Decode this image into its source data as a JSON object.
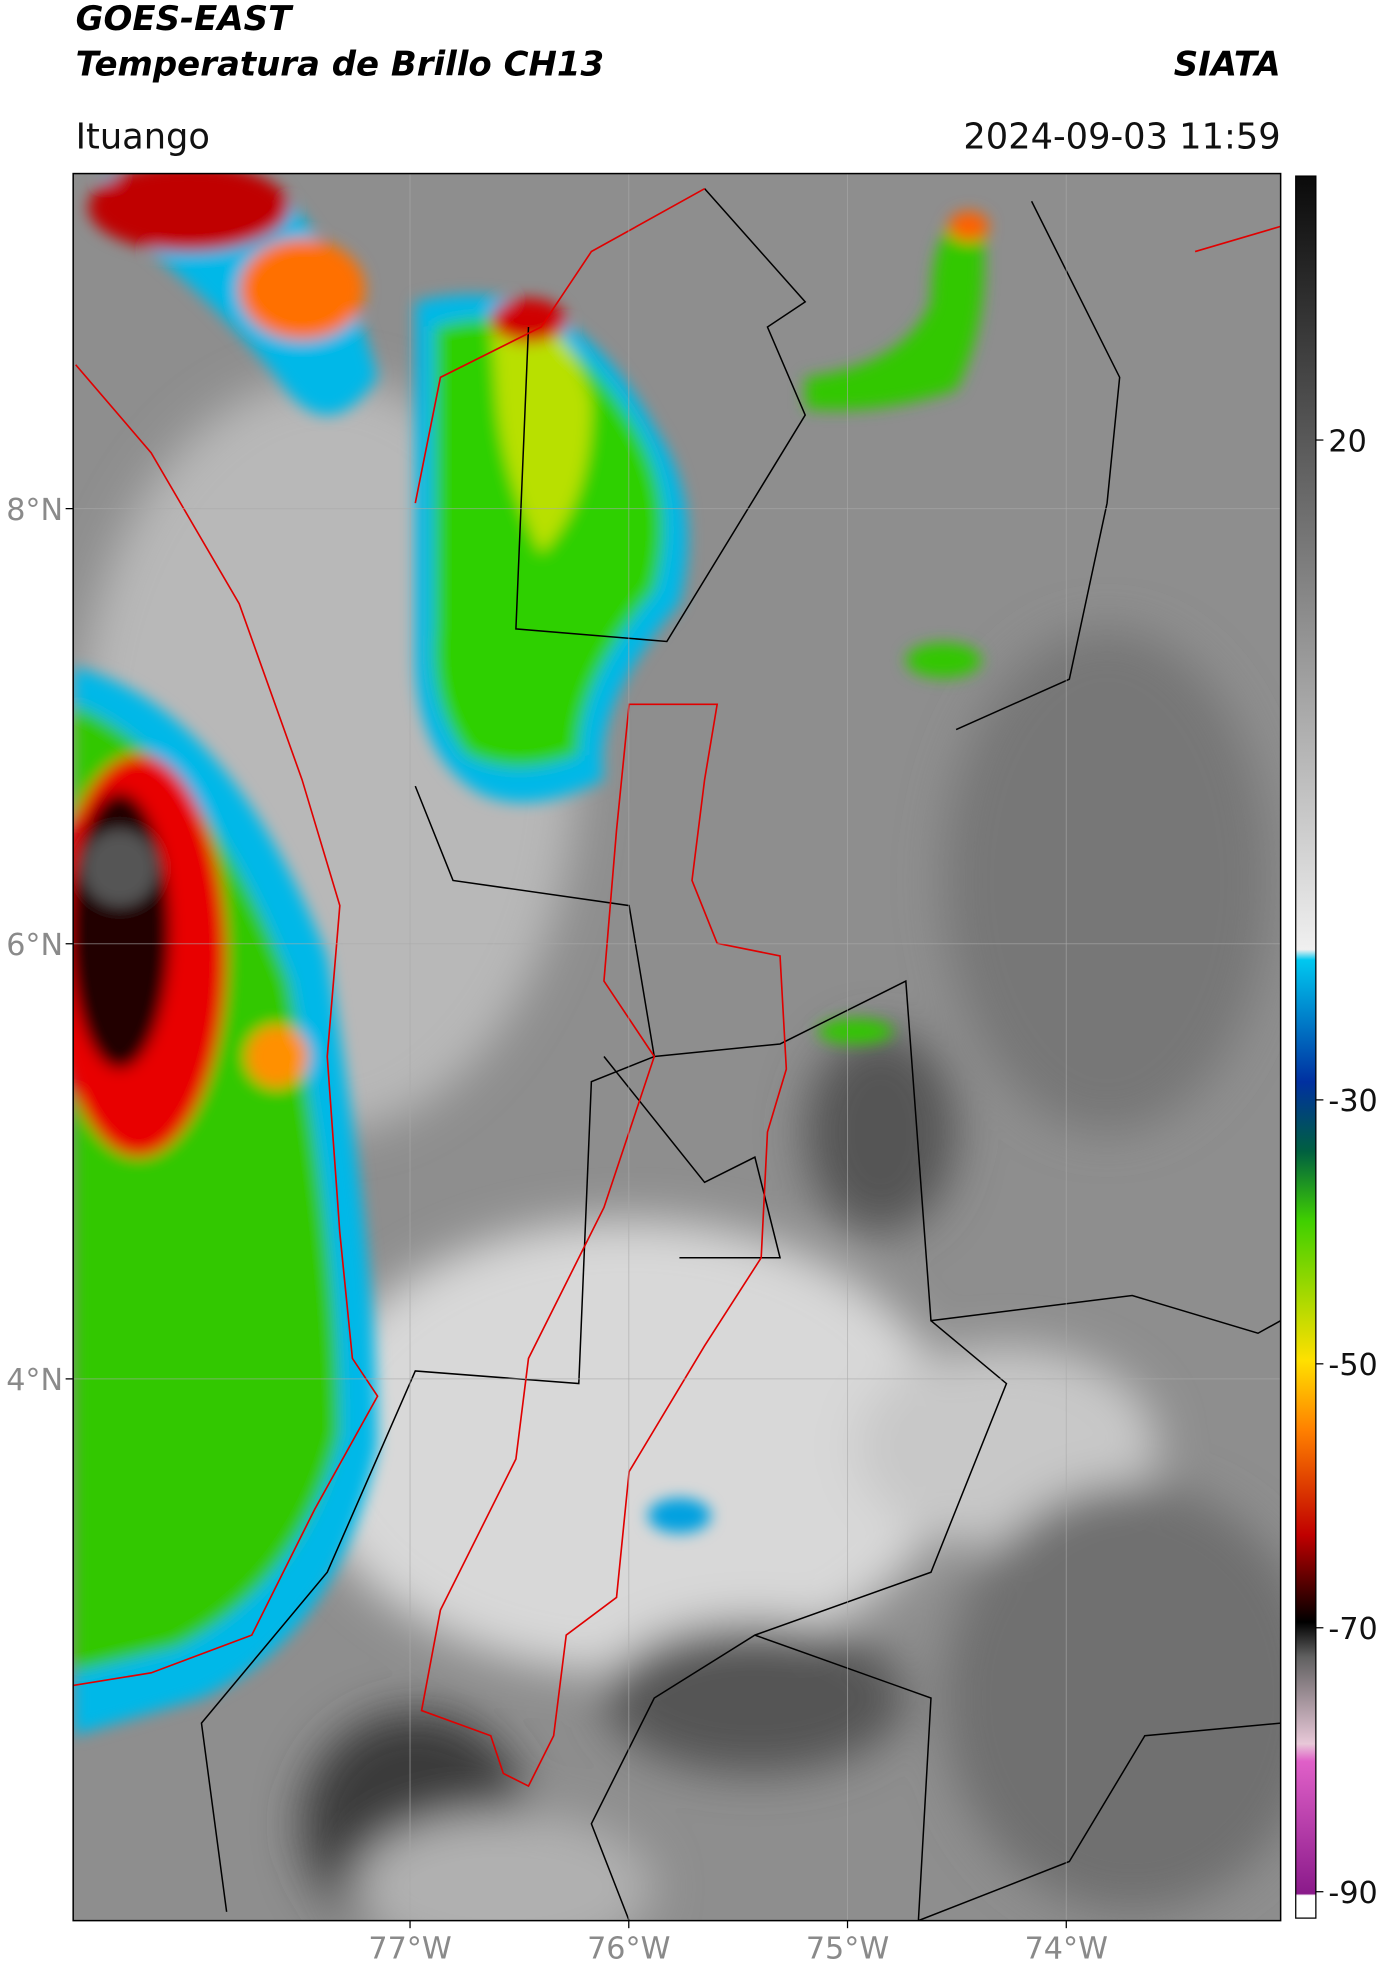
{
  "header": {
    "title": "GOES-EAST",
    "subtitle": "Temperatura de Brillo CH13",
    "source": "SIATA",
    "location": "Ituango",
    "datetime": "2024-09-03 11:59"
  },
  "map": {
    "xlim": [
      -78.54,
      -73.02
    ],
    "ylim": [
      1.51,
      9.54
    ],
    "xticks": [
      {
        "value": -77,
        "label": "77°W"
      },
      {
        "value": -76,
        "label": "76°W"
      },
      {
        "value": -75,
        "label": "75°W"
      },
      {
        "value": -74,
        "label": "74°W"
      }
    ],
    "yticks": [
      {
        "value": 4,
        "label": "4°N"
      },
      {
        "value": 6,
        "label": "6°N"
      },
      {
        "value": 8,
        "label": "8°N"
      }
    ],
    "grid": true
  },
  "colorbar": {
    "lim": [
      -92,
      40
    ],
    "ticks": [
      20,
      -30,
      -50,
      -70,
      -90
    ]
  }
}
